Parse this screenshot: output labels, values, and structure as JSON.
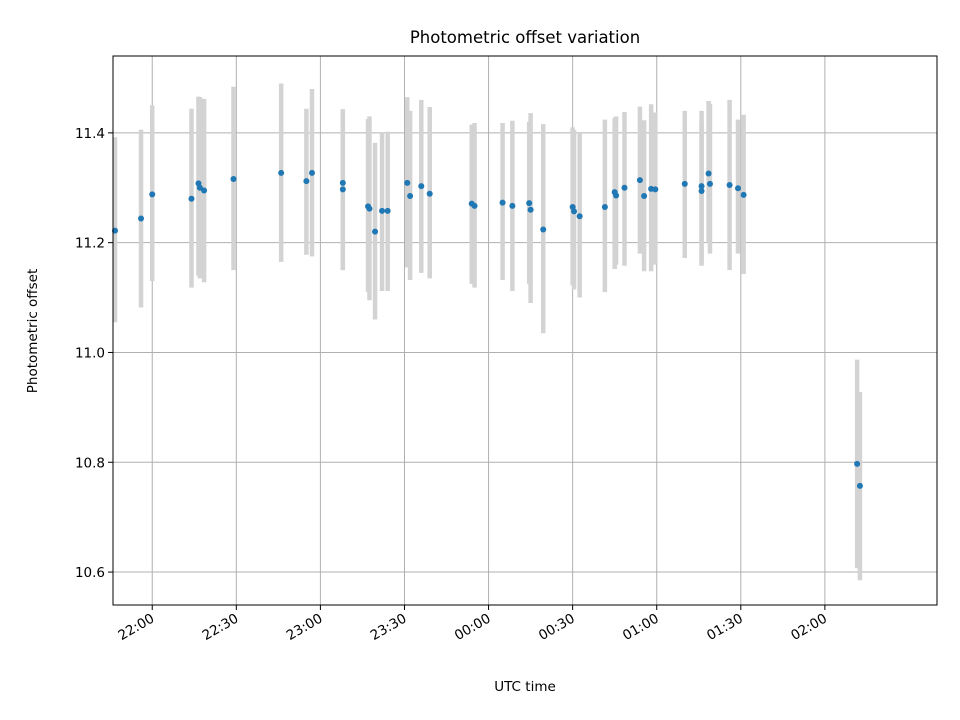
{
  "chart_data": {
    "type": "scatter",
    "title": "Photometric offset variation",
    "xlabel": "UTC time",
    "ylabel": "Photometric offset",
    "x_unit": "minutes after 00:00 UTC",
    "xlim": [
      -134,
      160
    ],
    "ylim": [
      10.54,
      11.54
    ],
    "grid": true,
    "x_ticks": [
      {
        "value": -120,
        "label": "22:00"
      },
      {
        "value": -90,
        "label": "22:30"
      },
      {
        "value": -60,
        "label": "23:00"
      },
      {
        "value": -30,
        "label": "23:30"
      },
      {
        "value": 0,
        "label": "00:00"
      },
      {
        "value": 30,
        "label": "00:30"
      },
      {
        "value": 60,
        "label": "01:00"
      },
      {
        "value": 90,
        "label": "01:30"
      },
      {
        "value": 120,
        "label": "02:00"
      }
    ],
    "y_ticks": [
      {
        "value": 10.6,
        "label": "10.6"
      },
      {
        "value": 10.8,
        "label": "10.8"
      },
      {
        "value": 11.0,
        "label": "11.0"
      },
      {
        "value": 11.2,
        "label": "11.2"
      },
      {
        "value": 11.4,
        "label": "11.4"
      }
    ],
    "colors": {
      "points": "#1f77b4",
      "error_bars": "#d3d3d3",
      "grid": "#b0b0b0"
    },
    "points": [
      {
        "x": -135.0,
        "y": 11.222,
        "ylo": 11.055,
        "yhi": 11.392
      },
      {
        "x": -124.0,
        "y": 11.244,
        "ylo": 11.082,
        "yhi": 11.406
      },
      {
        "x": -120.0,
        "y": 11.288,
        "ylo": 11.13,
        "yhi": 11.45
      },
      {
        "x": -106.0,
        "y": 11.28,
        "ylo": 11.118,
        "yhi": 11.444
      },
      {
        "x": -103.5,
        "y": 11.308,
        "ylo": 11.14,
        "yhi": 11.466
      },
      {
        "x": -103.0,
        "y": 11.3,
        "ylo": 11.135,
        "yhi": 11.465
      },
      {
        "x": -101.5,
        "y": 11.295,
        "ylo": 11.128,
        "yhi": 11.462
      },
      {
        "x": -91.0,
        "y": 11.316,
        "ylo": 11.15,
        "yhi": 11.484
      },
      {
        "x": -74.0,
        "y": 11.327,
        "ylo": 11.165,
        "yhi": 11.49
      },
      {
        "x": -65.0,
        "y": 11.312,
        "ylo": 11.178,
        "yhi": 11.444
      },
      {
        "x": -63.0,
        "y": 11.327,
        "ylo": 11.175,
        "yhi": 11.48
      },
      {
        "x": -52.0,
        "y": 11.309,
        "ylo": 11.15,
        "yhi": 11.443
      },
      {
        "x": -52.0,
        "y": 11.297,
        "ylo": 11.15,
        "yhi": 11.443
      },
      {
        "x": -43.0,
        "y": 11.266,
        "ylo": 11.11,
        "yhi": 11.425
      },
      {
        "x": -42.5,
        "y": 11.262,
        "ylo": 11.095,
        "yhi": 11.43
      },
      {
        "x": -40.5,
        "y": 11.22,
        "ylo": 11.06,
        "yhi": 11.382
      },
      {
        "x": -38.0,
        "y": 11.258,
        "ylo": 11.112,
        "yhi": 11.4
      },
      {
        "x": -36.0,
        "y": 11.258,
        "ylo": 11.112,
        "yhi": 11.402
      },
      {
        "x": -29.0,
        "y": 11.309,
        "ylo": 11.155,
        "yhi": 11.465
      },
      {
        "x": -28.0,
        "y": 11.285,
        "ylo": 11.132,
        "yhi": 11.44
      },
      {
        "x": -24.0,
        "y": 11.303,
        "ylo": 11.145,
        "yhi": 11.46
      },
      {
        "x": -21.0,
        "y": 11.289,
        "ylo": 11.135,
        "yhi": 11.447
      },
      {
        "x": -6.0,
        "y": 11.271,
        "ylo": 11.125,
        "yhi": 11.415
      },
      {
        "x": -5.0,
        "y": 11.267,
        "ylo": 11.118,
        "yhi": 11.418
      },
      {
        "x": 5.0,
        "y": 11.273,
        "ylo": 11.132,
        "yhi": 11.418
      },
      {
        "x": 8.5,
        "y": 11.267,
        "ylo": 11.112,
        "yhi": 11.422
      },
      {
        "x": 14.5,
        "y": 11.272,
        "ylo": 11.125,
        "yhi": 11.42
      },
      {
        "x": 15.0,
        "y": 11.26,
        "ylo": 11.09,
        "yhi": 11.436
      },
      {
        "x": 19.5,
        "y": 11.224,
        "ylo": 11.035,
        "yhi": 11.416
      },
      {
        "x": 30.0,
        "y": 11.265,
        "ylo": 11.122,
        "yhi": 11.41
      },
      {
        "x": 30.5,
        "y": 11.257,
        "ylo": 11.115,
        "yhi": 11.405
      },
      {
        "x": 32.5,
        "y": 11.248,
        "ylo": 11.1,
        "yhi": 11.4
      },
      {
        "x": 41.5,
        "y": 11.265,
        "ylo": 11.11,
        "yhi": 11.424
      },
      {
        "x": 45.0,
        "y": 11.292,
        "ylo": 11.152,
        "yhi": 11.427
      },
      {
        "x": 45.5,
        "y": 11.286,
        "ylo": 11.16,
        "yhi": 11.43
      },
      {
        "x": 48.5,
        "y": 11.3,
        "ylo": 11.158,
        "yhi": 11.438
      },
      {
        "x": 54.0,
        "y": 11.314,
        "ylo": 11.18,
        "yhi": 11.448
      },
      {
        "x": 55.5,
        "y": 11.285,
        "ylo": 11.148,
        "yhi": 11.423
      },
      {
        "x": 58.0,
        "y": 11.298,
        "ylo": 11.148,
        "yhi": 11.452
      },
      {
        "x": 59.5,
        "y": 11.297,
        "ylo": 11.16,
        "yhi": 11.437
      },
      {
        "x": 70.0,
        "y": 11.307,
        "ylo": 11.172,
        "yhi": 11.44
      },
      {
        "x": 76.0,
        "y": 11.303,
        "ylo": 11.158,
        "yhi": 11.44
      },
      {
        "x": 76.0,
        "y": 11.294,
        "ylo": 11.165,
        "yhi": 11.42
      },
      {
        "x": 78.5,
        "y": 11.326,
        "ylo": 11.2,
        "yhi": 11.458
      },
      {
        "x": 79.0,
        "y": 11.307,
        "ylo": 11.18,
        "yhi": 11.453
      },
      {
        "x": 86.0,
        "y": 11.305,
        "ylo": 11.15,
        "yhi": 11.46
      },
      {
        "x": 89.0,
        "y": 11.299,
        "ylo": 11.18,
        "yhi": 11.424
      },
      {
        "x": 91.0,
        "y": 11.287,
        "ylo": 11.143,
        "yhi": 11.433
      },
      {
        "x": 131.5,
        "y": 10.797,
        "ylo": 10.607,
        "yhi": 10.987
      },
      {
        "x": 132.5,
        "y": 10.757,
        "ylo": 10.585,
        "yhi": 10.928
      }
    ]
  }
}
